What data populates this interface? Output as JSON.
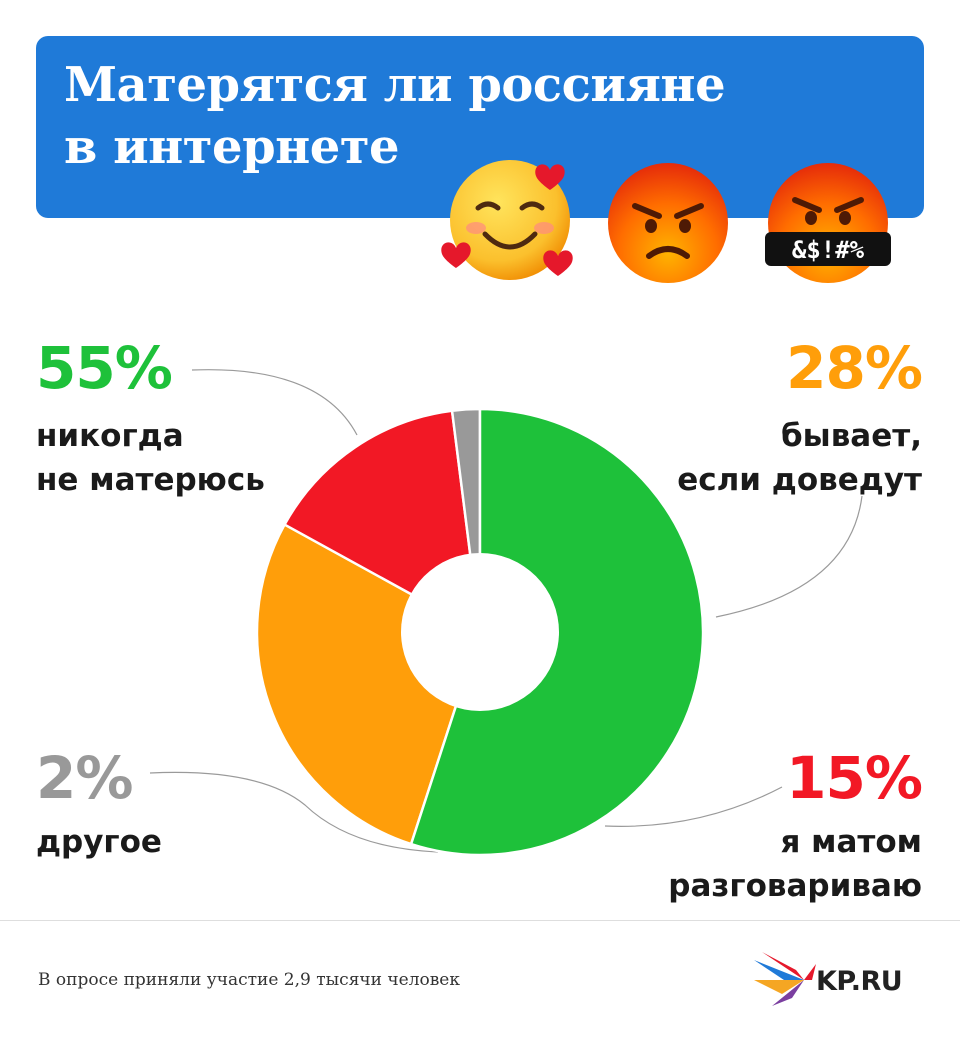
{
  "header": {
    "title_line1": "Матерятся ли россияне",
    "title_line2": "в интернете",
    "background_color": "#1f7ad8",
    "icons": [
      "smiling-face-with-hearts-icon",
      "angry-face-icon",
      "face-with-symbols-on-mouth-icon"
    ],
    "symbols_text": "&$!#%"
  },
  "chart_data": {
    "type": "pie",
    "donut": true,
    "slices": [
      {
        "label_value": "55%",
        "value": 55,
        "label": "никогда не матерюсь",
        "label_line1": "никогда",
        "label_line2": "не матерюсь",
        "color": "#1ec13a"
      },
      {
        "label_value": "28%",
        "value": 28,
        "label": "бывает, если доведут",
        "label_line1": "бывает,",
        "label_line2": "если доведут",
        "color": "#ff9e0a"
      },
      {
        "label_value": "15%",
        "value": 15,
        "label": "я матом разговариваю",
        "label_line1": "я матом",
        "label_line2": "разговариваю",
        "color": "#f21825"
      },
      {
        "label_value": "2%",
        "value": 2,
        "label": "другое",
        "label_line1": "другое",
        "label_line2": "",
        "color": "#999999"
      }
    ],
    "start_value_offset": 55,
    "legend": "labels-around"
  },
  "footer": {
    "note": "В опросе приняли участие 2,9 тысячи человек",
    "logo_text": "KP.RU"
  }
}
